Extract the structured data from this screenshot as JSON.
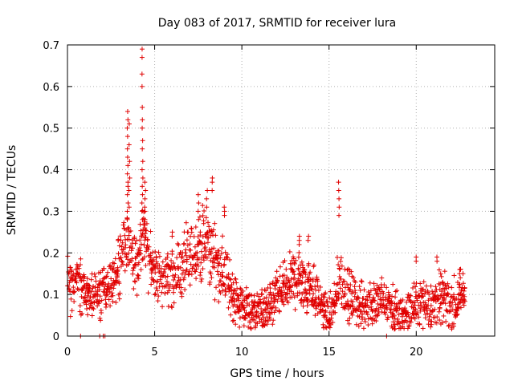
{
  "chart_data": {
    "type": "scatter",
    "title": "Day 083 of 2017, SRMTID for receiver lura",
    "xlabel": "GPS time / hours",
    "ylabel": "SRMTID / TECUs",
    "xlim": [
      0,
      24.5
    ],
    "ylim": [
      0,
      0.7
    ],
    "xticks": [
      0,
      5,
      10,
      15,
      20
    ],
    "xtick_labels": [
      "0",
      "5",
      "10",
      "15",
      "20"
    ],
    "yticks": [
      0,
      0.1,
      0.2,
      0.3,
      0.4,
      0.5,
      0.6,
      0.7
    ],
    "ytick_labels": [
      "0",
      "0.1",
      "0.2",
      "0.3",
      "0.4",
      "0.5",
      "0.6",
      "0.7"
    ],
    "grid": true,
    "marker": "plus",
    "marker_color": "#e00000",
    "series": [
      {
        "name": "SRMTID",
        "trend_hours": [
          0,
          0.5,
          1,
          1.5,
          2,
          2.5,
          3,
          3.3,
          3.6,
          4,
          4.3,
          4.6,
          5,
          5.5,
          6,
          6.5,
          7,
          7.5,
          8,
          8.5,
          9,
          9.5,
          10,
          10.5,
          11,
          11.5,
          12,
          12.5,
          13,
          13.5,
          14,
          14.5,
          15,
          15.3,
          15.6,
          16,
          16.5,
          17,
          17.5,
          18,
          18.5,
          19,
          19.5,
          20,
          20.5,
          21,
          21.5,
          22,
          22.5,
          22.8
        ],
        "trend_values": [
          0.13,
          0.12,
          0.11,
          0.1,
          0.11,
          0.13,
          0.15,
          0.25,
          0.2,
          0.16,
          0.25,
          0.2,
          0.15,
          0.14,
          0.14,
          0.16,
          0.18,
          0.21,
          0.22,
          0.18,
          0.15,
          0.1,
          0.07,
          0.06,
          0.06,
          0.07,
          0.09,
          0.12,
          0.14,
          0.13,
          0.12,
          0.08,
          0.04,
          0.06,
          0.15,
          0.1,
          0.08,
          0.07,
          0.08,
          0.08,
          0.07,
          0.05,
          0.06,
          0.08,
          0.08,
          0.07,
          0.1,
          0.07,
          0.1,
          0.1
        ],
        "spikes": [
          {
            "hour": 3.45,
            "values": [
              0.54,
              0.52,
              0.5,
              0.48,
              0.45,
              0.43,
              0.41,
              0.39,
              0.37,
              0.36,
              0.34,
              0.32,
              0.3,
              0.28
            ]
          },
          {
            "hour": 3.55,
            "values": [
              0.51,
              0.46,
              0.42,
              0.38,
              0.35,
              0.31
            ]
          },
          {
            "hour": 4.3,
            "values": [
              0.69,
              0.67,
              0.63,
              0.6,
              0.55,
              0.52,
              0.5,
              0.47,
              0.45,
              0.42,
              0.4,
              0.38,
              0.36,
              0.34,
              0.32,
              0.3,
              0.28
            ]
          },
          {
            "hour": 4.45,
            "values": [
              0.37,
              0.35,
              0.33,
              0.31,
              0.3,
              0.28,
              0.27,
              0.26
            ]
          },
          {
            "hour": 6,
            "values": [
              0.25,
              0.24
            ]
          },
          {
            "hour": 7.5,
            "values": [
              0.34,
              0.32,
              0.3,
              0.28
            ]
          },
          {
            "hour": 8,
            "values": [
              0.35,
              0.33,
              0.31
            ]
          },
          {
            "hour": 8.3,
            "values": [
              0.38,
              0.37,
              0.35
            ]
          },
          {
            "hour": 9,
            "values": [
              0.31,
              0.3,
              0.29
            ]
          },
          {
            "hour": 13.3,
            "values": [
              0.24,
              0.23,
              0.22
            ]
          },
          {
            "hour": 13.8,
            "values": [
              0.24,
              0.23
            ]
          },
          {
            "hour": 15.55,
            "values": [
              0.37,
              0.35,
              0.33,
              0.31,
              0.29
            ]
          },
          {
            "hour": 20,
            "values": [
              0.19,
              0.18
            ]
          },
          {
            "hour": 21.2,
            "values": [
              0.19,
              0.18
            ]
          },
          {
            "hour": 22.5,
            "values": [
              0.16,
              0.15,
              0.14
            ]
          }
        ],
        "zero_points": [
          0.75,
          1.85,
          2.05,
          2.15,
          18.3
        ]
      }
    ]
  }
}
